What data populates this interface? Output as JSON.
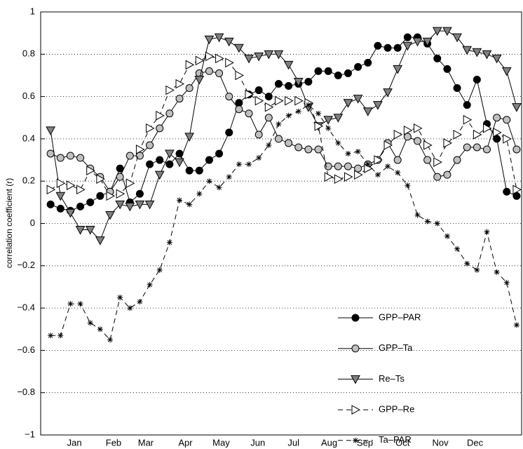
{
  "chart_data": {
    "type": "line",
    "y_label": "correlation coefficient (r)",
    "x": [
      1,
      2,
      3,
      4,
      5,
      6,
      7,
      8,
      9,
      10,
      11,
      12,
      13,
      14,
      15,
      16,
      17,
      18,
      19,
      20,
      21,
      22,
      23,
      24,
      25,
      26,
      27,
      28,
      29,
      30,
      31,
      32,
      33,
      34,
      35,
      36,
      37,
      38,
      39,
      40,
      41,
      42,
      43,
      44,
      45,
      46,
      47,
      48
    ],
    "xlim": [
      0,
      48.5
    ],
    "xticks": [
      {
        "value": 3.4,
        "label": "Jan"
      },
      {
        "value": 7.35,
        "label": "Feb"
      },
      {
        "value": 10.6,
        "label": "Mar"
      },
      {
        "value": 14.6,
        "label": "Apr"
      },
      {
        "value": 18.2,
        "label": "May"
      },
      {
        "value": 21.9,
        "label": "Jun"
      },
      {
        "value": 25.5,
        "label": "Jul"
      },
      {
        "value": 29.1,
        "label": "Aug"
      },
      {
        "value": 32.7,
        "label": "Sep"
      },
      {
        "value": 36.5,
        "label": "Oct"
      },
      {
        "value": 40.3,
        "label": "Nov"
      },
      {
        "value": 43.8,
        "label": "Dec"
      }
    ],
    "ylim": [
      -1,
      1
    ],
    "yticks": [
      {
        "value": -1,
        "label": "−1"
      },
      {
        "value": -0.8,
        "label": "−0.8"
      },
      {
        "value": -0.6,
        "label": "−0.6"
      },
      {
        "value": -0.4,
        "label": "−0.4"
      },
      {
        "value": -0.2,
        "label": "−0.2"
      },
      0,
      0.2,
      0.4,
      0.6,
      0.8,
      1
    ],
    "grid": true,
    "legend_position": "lower right",
    "series": [
      {
        "name": "GPP–PAR",
        "color": "#000000",
        "marker": "circle",
        "line": "solid",
        "values": [
          0.09,
          0.07,
          0.06,
          0.08,
          0.1,
          0.13,
          0.15,
          0.26,
          0.1,
          0.14,
          0.28,
          0.3,
          0.28,
          0.33,
          0.25,
          0.25,
          0.3,
          0.33,
          0.43,
          0.57,
          0.61,
          0.63,
          0.6,
          0.66,
          0.65,
          0.66,
          0.67,
          0.72,
          0.72,
          0.7,
          0.71,
          0.74,
          0.76,
          0.84,
          0.83,
          0.83,
          0.88,
          0.88,
          0.85,
          0.78,
          0.73,
          0.64,
          0.56,
          0.68,
          0.47,
          0.4,
          0.15,
          0.13
        ]
      },
      {
        "name": "GPP–Ta",
        "color": "#c0c0c0",
        "marker": "circle",
        "line": "solid",
        "values": [
          0.33,
          0.31,
          0.32,
          0.31,
          0.26,
          0.22,
          0.15,
          0.22,
          0.32,
          0.32,
          0.37,
          0.45,
          0.52,
          0.59,
          0.64,
          0.71,
          0.72,
          0.71,
          0.6,
          0.54,
          0.52,
          0.42,
          0.5,
          0.4,
          0.38,
          0.36,
          0.35,
          0.35,
          0.27,
          0.27,
          0.27,
          0.26,
          0.28,
          0.3,
          0.38,
          0.3,
          0.41,
          0.39,
          0.3,
          0.22,
          0.23,
          0.3,
          0.36,
          0.36,
          0.35,
          0.5,
          0.49,
          0.35
        ]
      },
      {
        "name": "Re–Ts",
        "color": "#808080",
        "marker": "triangle-down",
        "line": "solid",
        "values": [
          0.44,
          0.13,
          0.05,
          -0.03,
          -0.03,
          -0.08,
          0.04,
          0.09,
          0.08,
          0.09,
          0.09,
          0.23,
          0.33,
          0.29,
          0.41,
          0.68,
          0.87,
          0.88,
          0.86,
          0.83,
          0.78,
          0.79,
          0.8,
          0.8,
          0.75,
          0.67,
          0.55,
          0.46,
          0.49,
          0.5,
          0.57,
          0.59,
          0.53,
          0.56,
          0.62,
          0.73,
          0.84,
          0.86,
          0.86,
          0.91,
          0.91,
          0.88,
          0.82,
          0.81,
          0.8,
          0.78,
          0.72,
          0.55
        ]
      },
      {
        "name": "GPP–Re",
        "color": "#ffffff",
        "marker": "triangle-right",
        "line": "dashed",
        "values": [
          0.16,
          0.19,
          0.18,
          0.16,
          0.25,
          0.21,
          0.13,
          0.14,
          0.19,
          0.35,
          0.45,
          0.51,
          0.63,
          0.66,
          0.75,
          0.77,
          0.79,
          0.78,
          0.76,
          0.7,
          0.61,
          0.58,
          0.55,
          0.58,
          0.58,
          0.58,
          0.57,
          0.46,
          0.22,
          0.21,
          0.22,
          0.23,
          0.26,
          0.3,
          0.37,
          0.42,
          0.44,
          0.45,
          0.37,
          0.29,
          0.38,
          0.42,
          0.49,
          0.42,
          0.45,
          0.43,
          0.4,
          0.16
        ]
      },
      {
        "name": "Ta–PAR",
        "color": "#000000",
        "marker": "star",
        "line": "dashed",
        "values": [
          -0.53,
          -0.53,
          -0.38,
          -0.38,
          -0.47,
          -0.5,
          -0.55,
          -0.35,
          -0.4,
          -0.37,
          -0.29,
          -0.22,
          -0.09,
          0.11,
          0.09,
          0.14,
          0.2,
          0.17,
          0.22,
          0.28,
          0.28,
          0.31,
          0.37,
          0.47,
          0.51,
          0.53,
          0.56,
          0.52,
          0.45,
          0.38,
          0.33,
          0.34,
          0.28,
          0.23,
          0.27,
          0.24,
          0.18,
          0.04,
          0.01,
          0.0,
          -0.06,
          -0.12,
          -0.19,
          -0.22,
          -0.04,
          -0.23,
          -0.28,
          -0.48
        ]
      }
    ]
  }
}
